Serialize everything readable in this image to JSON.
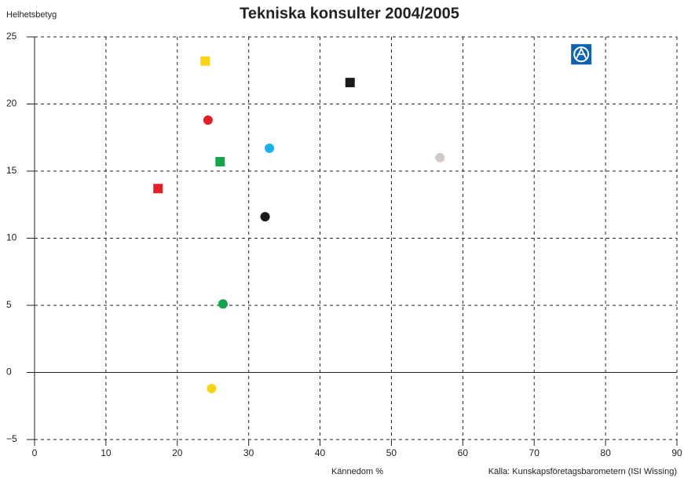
{
  "chart_data": {
    "type": "scatter",
    "title": "Tekniska konsulter 2004/2005",
    "ylabel": "Helhetsbetyg",
    "xlabel": "Kännedom %",
    "source": "Källa: Kunskapsföretagsbarometern (ISI Wissing)",
    "x": [
      23.9,
      44.2,
      24.3,
      32.9,
      26.0,
      56.8,
      17.3,
      32.3,
      26.4,
      24.8,
      76.6
    ],
    "y": [
      23.2,
      21.6,
      18.8,
      16.7,
      15.7,
      16.0,
      13.7,
      11.6,
      5.1,
      -1.2,
      23.7
    ],
    "colors": [
      "#f7d417",
      "#1a1a1a",
      "#e3202a",
      "#1ab0ec",
      "#14a54a",
      "#d2c8c4",
      "#e3202a",
      "#1a1a1a",
      "#14a54a",
      "#f7d417",
      "#0f63ad"
    ],
    "markers": [
      "square",
      "square",
      "circle",
      "circle",
      "square",
      "circle",
      "square",
      "circle",
      "circle",
      "circle",
      "logo"
    ],
    "xlim": [
      0,
      90
    ],
    "ylim": [
      -5,
      25
    ],
    "xticks": [
      0,
      10,
      20,
      30,
      40,
      50,
      60,
      70,
      80,
      90
    ],
    "yticks": [
      {
        "value": -5,
        "label": "−5"
      },
      0,
      5,
      10,
      15,
      20,
      25
    ],
    "grid": true
  }
}
